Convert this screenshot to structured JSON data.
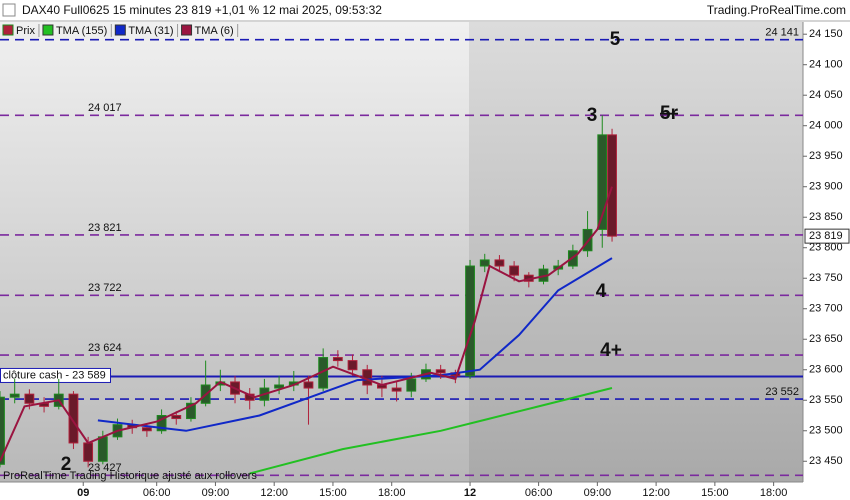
{
  "chart_data": {
    "type": "candlestick",
    "title": "DAX40 Full0625 15 minutes 23 819 +1,01 % 12 mai 2025, 09:53:32",
    "source": "Trading.ProRealTime.com",
    "footnote": "ProRealTime Trading  Historique ajusté aux rollovers",
    "xlim": [
      0,
      164
    ],
    "ylim": [
      23416,
      24170
    ],
    "xticks": [
      {
        "value": 17,
        "label": "09"
      },
      {
        "value": 32,
        "label": "06:00"
      },
      {
        "value": 44,
        "label": "09:00"
      },
      {
        "value": 56,
        "label": "12:00"
      },
      {
        "value": 68,
        "label": "15:00"
      },
      {
        "value": 80,
        "label": "18:00"
      },
      {
        "value": 96,
        "label": "12"
      },
      {
        "value": 110,
        "label": "06:00"
      },
      {
        "value": 122,
        "label": "09:00"
      },
      {
        "value": 134,
        "label": "12:00"
      },
      {
        "value": 146,
        "label": "15:00"
      },
      {
        "value": 158,
        "label": "18:00"
      }
    ],
    "yticks": [
      {
        "value": 23450,
        "label": "23 450"
      },
      {
        "value": 23500,
        "label": "23 500"
      },
      {
        "value": 23550,
        "label": "23 550"
      },
      {
        "value": 23600,
        "label": "23 600"
      },
      {
        "value": 23650,
        "label": "23 650"
      },
      {
        "value": 23700,
        "label": "23 700"
      },
      {
        "value": 23750,
        "label": "23 750"
      },
      {
        "value": 23800,
        "label": "23 800"
      },
      {
        "value": 23850,
        "label": "23 850"
      },
      {
        "value": 23900,
        "label": "23 900"
      },
      {
        "value": 23950,
        "label": "23 950"
      },
      {
        "value": 24000,
        "label": "24 000"
      },
      {
        "value": 24050,
        "label": "24 050"
      },
      {
        "value": 24100,
        "label": "24 100"
      },
      {
        "value": 24150,
        "label": "24 150"
      }
    ],
    "last": {
      "value": 23819,
      "label": "23 819"
    },
    "candles": {
      "name": "Prix",
      "up_color": "#1d8a1d",
      "down_color": "#b0203a",
      "x": [
        0,
        3,
        6,
        9,
        12,
        15,
        18,
        21,
        24,
        27,
        30,
        33,
        36,
        39,
        42,
        45,
        48,
        51,
        54,
        57,
        60,
        63,
        66,
        69,
        72,
        75,
        78,
        81,
        84,
        87,
        90,
        93,
        96,
        99,
        102,
        105,
        108,
        111,
        114,
        117,
        120,
        123,
        125
      ],
      "open": [
        23445,
        23555,
        23560,
        23545,
        23540,
        23560,
        23480,
        23450,
        23490,
        23510,
        23505,
        23500,
        23525,
        23520,
        23545,
        23575,
        23580,
        23560,
        23550,
        23570,
        23575,
        23580,
        23570,
        23620,
        23615,
        23600,
        23575,
        23570,
        23565,
        23585,
        23600,
        23595,
        23590,
        23770,
        23780,
        23770,
        23755,
        23745,
        23765,
        23770,
        23795,
        23830,
        23985
      ],
      "high": [
        23565,
        23585,
        23568,
        23555,
        23585,
        23565,
        23490,
        23500,
        23520,
        23518,
        23512,
        23535,
        23532,
        23555,
        23615,
        23600,
        23590,
        23570,
        23585,
        23590,
        23598,
        23590,
        23635,
        23632,
        23625,
        23608,
        23590,
        23580,
        23595,
        23610,
        23608,
        23600,
        23780,
        23790,
        23788,
        23778,
        23760,
        23772,
        23780,
        23805,
        23860,
        24017,
        23995
      ],
      "low": [
        23440,
        23545,
        23535,
        23530,
        23535,
        23470,
        23440,
        23445,
        23485,
        23495,
        23490,
        23495,
        23510,
        23515,
        23540,
        23565,
        23545,
        23535,
        23540,
        23560,
        23565,
        23510,
        23565,
        23605,
        23590,
        23560,
        23555,
        23548,
        23555,
        23580,
        23585,
        23578,
        23585,
        23760,
        23760,
        23745,
        23735,
        23740,
        23755,
        23765,
        23785,
        23800,
        23810
      ],
      "close": [
        23555,
        23560,
        23545,
        23540,
        23560,
        23480,
        23450,
        23490,
        23510,
        23505,
        23500,
        23525,
        23520,
        23545,
        23575,
        23580,
        23560,
        23550,
        23570,
        23575,
        23580,
        23570,
        23620,
        23615,
        23600,
        23575,
        23570,
        23565,
        23585,
        23600,
        23595,
        23590,
        23770,
        23780,
        23770,
        23755,
        23745,
        23765,
        23770,
        23795,
        23830,
        23985,
        23819
      ]
    },
    "series": [
      {
        "name": "TMA (155)",
        "color": "#22c022",
        "x": [
          51,
          70,
          90,
          100,
          110,
          125
        ],
        "values": [
          23430,
          23470,
          23500,
          23520,
          23540,
          23570
        ]
      },
      {
        "name": "TMA (31)",
        "color": "#1028c8",
        "x": [
          20,
          38,
          53,
          73,
          90,
          98,
          106,
          114,
          125
        ],
        "values": [
          23517,
          23500,
          23525,
          23583,
          23591,
          23600,
          23657,
          23730,
          23783
        ]
      },
      {
        "name": "TMA (6)",
        "color": "#9a1440",
        "x": [
          0,
          5,
          12,
          18,
          24,
          32,
          40,
          45,
          52,
          60,
          68,
          78,
          88,
          93,
          97,
          100,
          106,
          112,
          118,
          122,
          125
        ],
        "values": [
          23450,
          23540,
          23550,
          23480,
          23500,
          23515,
          23545,
          23580,
          23555,
          23575,
          23605,
          23575,
          23595,
          23585,
          23680,
          23770,
          23745,
          23755,
          23790,
          23830,
          23900
        ]
      }
    ],
    "levels": [
      {
        "value": 24141,
        "label": "24 141",
        "color": "#1a1ab4",
        "style": "dashed",
        "side": "right"
      },
      {
        "value": 24017,
        "label": "24 017",
        "color": "#7b2a9e",
        "style": "dashed",
        "side": "left"
      },
      {
        "value": 23821,
        "label": "23 821",
        "color": "#7b2a9e",
        "style": "dashed",
        "side": "left"
      },
      {
        "value": 23722,
        "label": "23 722",
        "color": "#7b2a9e",
        "style": "dashed",
        "side": "left"
      },
      {
        "value": 23624,
        "label": "23 624",
        "color": "#7b2a9e",
        "style": "dashed",
        "side": "left"
      },
      {
        "value": 23589,
        "label": "clôture cash - 23 589",
        "color": "#1a1ab4",
        "style": "solid",
        "side": "box"
      },
      {
        "value": 23552,
        "label": "23 552",
        "color": "#1a1ab4",
        "style": "dashed",
        "side": "right"
      },
      {
        "value": 23427,
        "label": "23 427",
        "color": "#7b2a9e",
        "style": "dashed",
        "side": "left"
      }
    ],
    "annotations": [
      {
        "text": "5",
        "color": "#1a1ab4"
      },
      {
        "text": "3",
        "color": "#7b2a9e"
      },
      {
        "text": "5r",
        "color": "#7b2a9e"
      },
      {
        "text": "4",
        "color": "#7b2a9e"
      },
      {
        "text": "4+",
        "color": "#7b2a9e"
      },
      {
        "text": "2",
        "color": "#7b2a9e"
      }
    ]
  }
}
